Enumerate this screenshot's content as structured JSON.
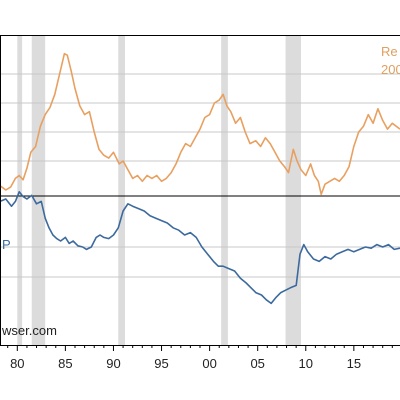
{
  "chart_data": {
    "type": "line",
    "title": "",
    "xlabel": "",
    "ylabel": "",
    "grid": true,
    "x_tick_labels": [
      "80",
      "85",
      "90",
      "95",
      "00",
      "05",
      "10",
      "15"
    ],
    "x_ticks": [
      1980,
      1985,
      1990,
      1995,
      2000,
      2005,
      2010,
      2015
    ],
    "xlim": [
      1978.2,
      2019.8
    ],
    "upper_panel": {
      "ylim": [
        0,
        100
      ],
      "gridlines": [
        20,
        40,
        60,
        80
      ]
    },
    "lower_panel": {
      "ylim": [
        0,
        100
      ],
      "gridlines": [
        50,
        25
      ]
    },
    "recessions": [
      [
        1980.0,
        1980.5
      ],
      [
        1981.5,
        1982.9
      ],
      [
        1990.5,
        1991.2
      ],
      [
        2001.2,
        2001.9
      ],
      [
        2007.9,
        2009.5
      ]
    ],
    "annotations": {
      "top_right_1": "Re",
      "top_right_2": "200",
      "lower_left_label": "P",
      "source_text": "wser.com"
    },
    "colors": {
      "upper_series": "#e8a060",
      "lower_series": "#3c6a9e",
      "recession_shade": "#dcdcdc",
      "grid": "#c8c8c8",
      "frame": "#000000"
    },
    "series": [
      {
        "values": [
          [
            1978.2,
            3
          ],
          [
            1978.8,
            0
          ],
          [
            1979.3,
            2
          ],
          [
            1979.8,
            8
          ],
          [
            1980.2,
            10
          ],
          [
            1980.6,
            7
          ],
          [
            1981.0,
            15
          ],
          [
            1981.4,
            26
          ],
          [
            1981.9,
            30
          ],
          [
            1982.4,
            44
          ],
          [
            1982.9,
            52
          ],
          [
            1983.4,
            57
          ],
          [
            1983.9,
            66
          ],
          [
            1984.4,
            80
          ],
          [
            1984.9,
            94
          ],
          [
            1985.2,
            93
          ],
          [
            1985.6,
            82
          ],
          [
            1986.0,
            70
          ],
          [
            1986.5,
            58
          ],
          [
            1987.0,
            52
          ],
          [
            1987.5,
            54
          ],
          [
            1988.0,
            40
          ],
          [
            1988.5,
            28
          ],
          [
            1989.0,
            24
          ],
          [
            1989.5,
            22
          ],
          [
            1990.0,
            26
          ],
          [
            1990.6,
            18
          ],
          [
            1991.0,
            20
          ],
          [
            1991.5,
            14
          ],
          [
            1992.0,
            8
          ],
          [
            1992.5,
            10
          ],
          [
            1993.0,
            6
          ],
          [
            1993.5,
            10
          ],
          [
            1994.0,
            8
          ],
          [
            1994.5,
            10
          ],
          [
            1995.0,
            6
          ],
          [
            1995.5,
            8
          ],
          [
            1996.0,
            12
          ],
          [
            1996.5,
            18
          ],
          [
            1997.0,
            26
          ],
          [
            1997.5,
            32
          ],
          [
            1998.0,
            30
          ],
          [
            1998.5,
            36
          ],
          [
            1999.0,
            42
          ],
          [
            1999.5,
            50
          ],
          [
            2000.0,
            52
          ],
          [
            2000.5,
            60
          ],
          [
            2001.0,
            62
          ],
          [
            2001.4,
            66
          ],
          [
            2001.8,
            58
          ],
          [
            2002.2,
            54
          ],
          [
            2002.7,
            46
          ],
          [
            2003.2,
            50
          ],
          [
            2003.7,
            40
          ],
          [
            2004.2,
            32
          ],
          [
            2004.8,
            34
          ],
          [
            2005.3,
            30
          ],
          [
            2005.8,
            36
          ],
          [
            2006.3,
            32
          ],
          [
            2006.8,
            26
          ],
          [
            2007.3,
            20
          ],
          [
            2007.8,
            16
          ],
          [
            2008.2,
            12
          ],
          [
            2008.7,
            28
          ],
          [
            2009.1,
            20
          ],
          [
            2009.5,
            14
          ],
          [
            2010.0,
            10
          ],
          [
            2010.5,
            18
          ],
          [
            2010.9,
            10
          ],
          [
            2011.3,
            6
          ],
          [
            2011.6,
            -3
          ],
          [
            2012.0,
            4
          ],
          [
            2012.5,
            6
          ],
          [
            2013.0,
            8
          ],
          [
            2013.5,
            6
          ],
          [
            2014.0,
            10
          ],
          [
            2014.5,
            16
          ],
          [
            2015.0,
            30
          ],
          [
            2015.5,
            40
          ],
          [
            2016.0,
            44
          ],
          [
            2016.5,
            52
          ],
          [
            2017.0,
            46
          ],
          [
            2017.5,
            56
          ],
          [
            2018.0,
            48
          ],
          [
            2018.5,
            42
          ],
          [
            2019.0,
            46
          ],
          [
            2019.8,
            42
          ]
        ]
      },
      {
        "values": [
          [
            1978.2,
            88
          ],
          [
            1978.8,
            90
          ],
          [
            1979.4,
            84
          ],
          [
            1979.8,
            88
          ],
          [
            1980.2,
            96
          ],
          [
            1980.6,
            92
          ],
          [
            1981.0,
            90
          ],
          [
            1981.5,
            93
          ],
          [
            1982.0,
            86
          ],
          [
            1982.5,
            88
          ],
          [
            1982.9,
            74
          ],
          [
            1983.3,
            66
          ],
          [
            1983.7,
            60
          ],
          [
            1984.1,
            57
          ],
          [
            1984.5,
            55
          ],
          [
            1985.0,
            58
          ],
          [
            1985.4,
            53
          ],
          [
            1985.8,
            55
          ],
          [
            1986.3,
            51
          ],
          [
            1986.8,
            50
          ],
          [
            1987.2,
            48
          ],
          [
            1987.7,
            50
          ],
          [
            1988.2,
            58
          ],
          [
            1988.6,
            60
          ],
          [
            1989.0,
            58
          ],
          [
            1989.5,
            57
          ],
          [
            1990.0,
            60
          ],
          [
            1990.5,
            66
          ],
          [
            1991.0,
            80
          ],
          [
            1991.5,
            86
          ],
          [
            1992.0,
            84
          ],
          [
            1992.6,
            82
          ],
          [
            1993.2,
            80
          ],
          [
            1993.8,
            76
          ],
          [
            1994.4,
            74
          ],
          [
            1995.0,
            72
          ],
          [
            1995.6,
            70
          ],
          [
            1996.2,
            66
          ],
          [
            1996.8,
            64
          ],
          [
            1997.4,
            60
          ],
          [
            1998.0,
            62
          ],
          [
            1998.6,
            58
          ],
          [
            1999.2,
            50
          ],
          [
            1999.8,
            44
          ],
          [
            2000.4,
            38
          ],
          [
            2000.9,
            34
          ],
          [
            2001.4,
            34
          ],
          [
            2002.0,
            32
          ],
          [
            2002.6,
            30
          ],
          [
            2003.2,
            24
          ],
          [
            2003.8,
            20
          ],
          [
            2004.3,
            16
          ],
          [
            2004.8,
            12
          ],
          [
            2005.4,
            10
          ],
          [
            2005.9,
            6
          ],
          [
            2006.4,
            3
          ],
          [
            2006.9,
            8
          ],
          [
            2007.4,
            12
          ],
          [
            2007.9,
            14
          ],
          [
            2008.4,
            16
          ],
          [
            2009.0,
            18
          ],
          [
            2009.4,
            44
          ],
          [
            2009.8,
            52
          ],
          [
            2010.2,
            46
          ],
          [
            2010.8,
            40
          ],
          [
            2011.4,
            38
          ],
          [
            2012.0,
            42
          ],
          [
            2012.6,
            40
          ],
          [
            2013.2,
            44
          ],
          [
            2013.8,
            46
          ],
          [
            2014.4,
            48
          ],
          [
            2015.0,
            46
          ],
          [
            2015.6,
            48
          ],
          [
            2016.2,
            50
          ],
          [
            2016.8,
            49
          ],
          [
            2017.4,
            52
          ],
          [
            2018.0,
            50
          ],
          [
            2018.6,
            52
          ],
          [
            2019.2,
            48
          ],
          [
            2019.8,
            49
          ]
        ]
      }
    ]
  }
}
